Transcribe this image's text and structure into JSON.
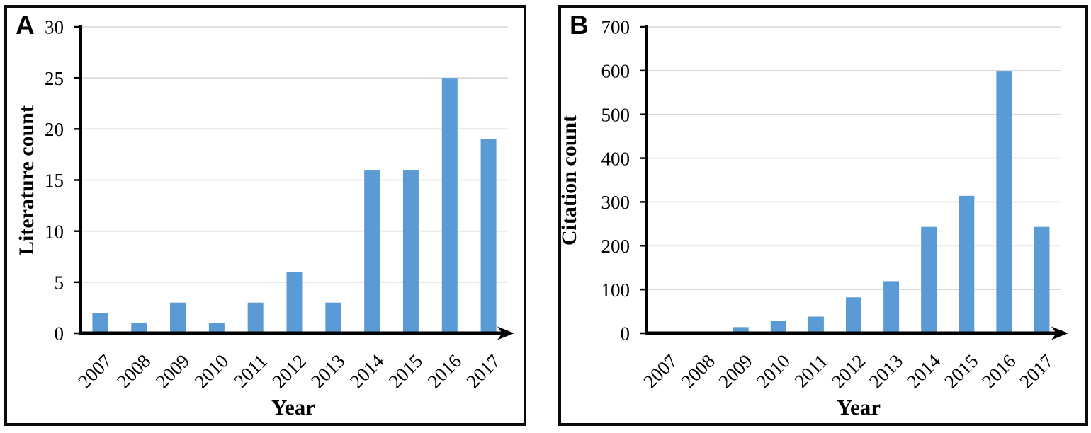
{
  "figure": {
    "background": "#ffffff",
    "panel_border_color": "#000000"
  },
  "chart_data": [
    {
      "type": "bar",
      "panel_label": "A",
      "title": "",
      "xlabel": "Year",
      "ylabel": "Literature count",
      "categories": [
        "2007",
        "2008",
        "2009",
        "2010",
        "2011",
        "2012",
        "2013",
        "2014",
        "2015",
        "2016",
        "2017"
      ],
      "values": [
        2,
        1,
        3,
        1,
        3,
        6,
        3,
        16,
        16,
        25,
        19
      ],
      "ylim": [
        0,
        30
      ],
      "ytick_step": 5,
      "grid": true,
      "legend": "none",
      "bar_color": "#5B9BD5",
      "grid_color": "#D8D8D8",
      "axis_color": "#000000",
      "text_color": "#000000"
    },
    {
      "type": "bar",
      "panel_label": "B",
      "title": "",
      "xlabel": "Year",
      "ylabel": "Citation count",
      "categories": [
        "2007",
        "2008",
        "2009",
        "2010",
        "2011",
        "2012",
        "2013",
        "2014",
        "2015",
        "2016",
        "2017"
      ],
      "values": [
        0,
        4,
        14,
        28,
        38,
        82,
        119,
        243,
        314,
        598,
        243
      ],
      "ylim": [
        0,
        700
      ],
      "ytick_step": 100,
      "grid": true,
      "legend": "none",
      "bar_color": "#5B9BD5",
      "grid_color": "#D8D8D8",
      "axis_color": "#000000",
      "text_color": "#000000"
    }
  ]
}
